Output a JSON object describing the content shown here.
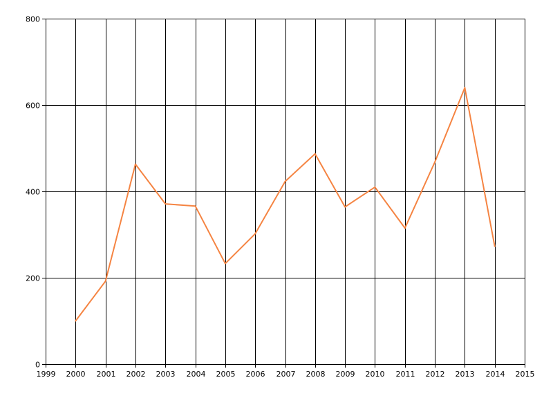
{
  "chart_data": {
    "type": "line",
    "title": "",
    "xlabel": "",
    "ylabel": "",
    "xlim": [
      1999,
      2015
    ],
    "ylim": [
      0,
      800
    ],
    "x_ticks": [
      1999,
      2000,
      2001,
      2002,
      2003,
      2004,
      2005,
      2006,
      2007,
      2008,
      2009,
      2010,
      2011,
      2012,
      2013,
      2014,
      2015
    ],
    "y_ticks": [
      0,
      200,
      400,
      600,
      800
    ],
    "grid": true,
    "series": [
      {
        "color": "#f58442",
        "x": [
          2000,
          2001,
          2002,
          2003,
          2004,
          2005,
          2006,
          2007,
          2008,
          2009,
          2010,
          2011,
          2012,
          2013,
          2014
        ],
        "y": [
          100,
          192,
          463,
          371,
          366,
          233,
          302,
          423,
          487,
          364,
          410,
          315,
          468,
          640,
          273
        ]
      }
    ]
  }
}
